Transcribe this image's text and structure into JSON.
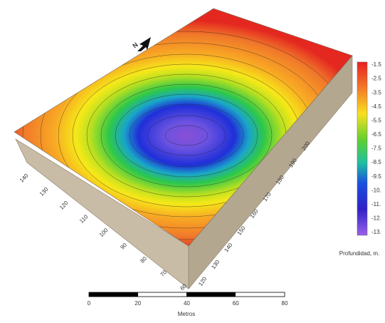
{
  "colorbar": {
    "title": "Profundidad, m.",
    "labels": [
      "-1.5",
      "-2.5",
      "-3.5",
      "-4.5",
      "-5.5",
      "-6.5",
      "-7.5",
      "-8.5",
      "-9.5",
      "-10.",
      "-11.",
      "-12.",
      "-13."
    ]
  },
  "left_axis": {
    "labels": [
      "140",
      "130",
      "120",
      "110",
      "100",
      "90",
      "80",
      "70",
      "60"
    ]
  },
  "right_axis": {
    "labels": [
      "120",
      "130",
      "140",
      "150",
      "160",
      "170",
      "180",
      "190",
      "200"
    ]
  },
  "north_arrow": {
    "label": "N"
  },
  "scale_bar": {
    "labels": [
      "0",
      "20",
      "40",
      "60",
      "80"
    ],
    "unit": "Metros"
  }
}
